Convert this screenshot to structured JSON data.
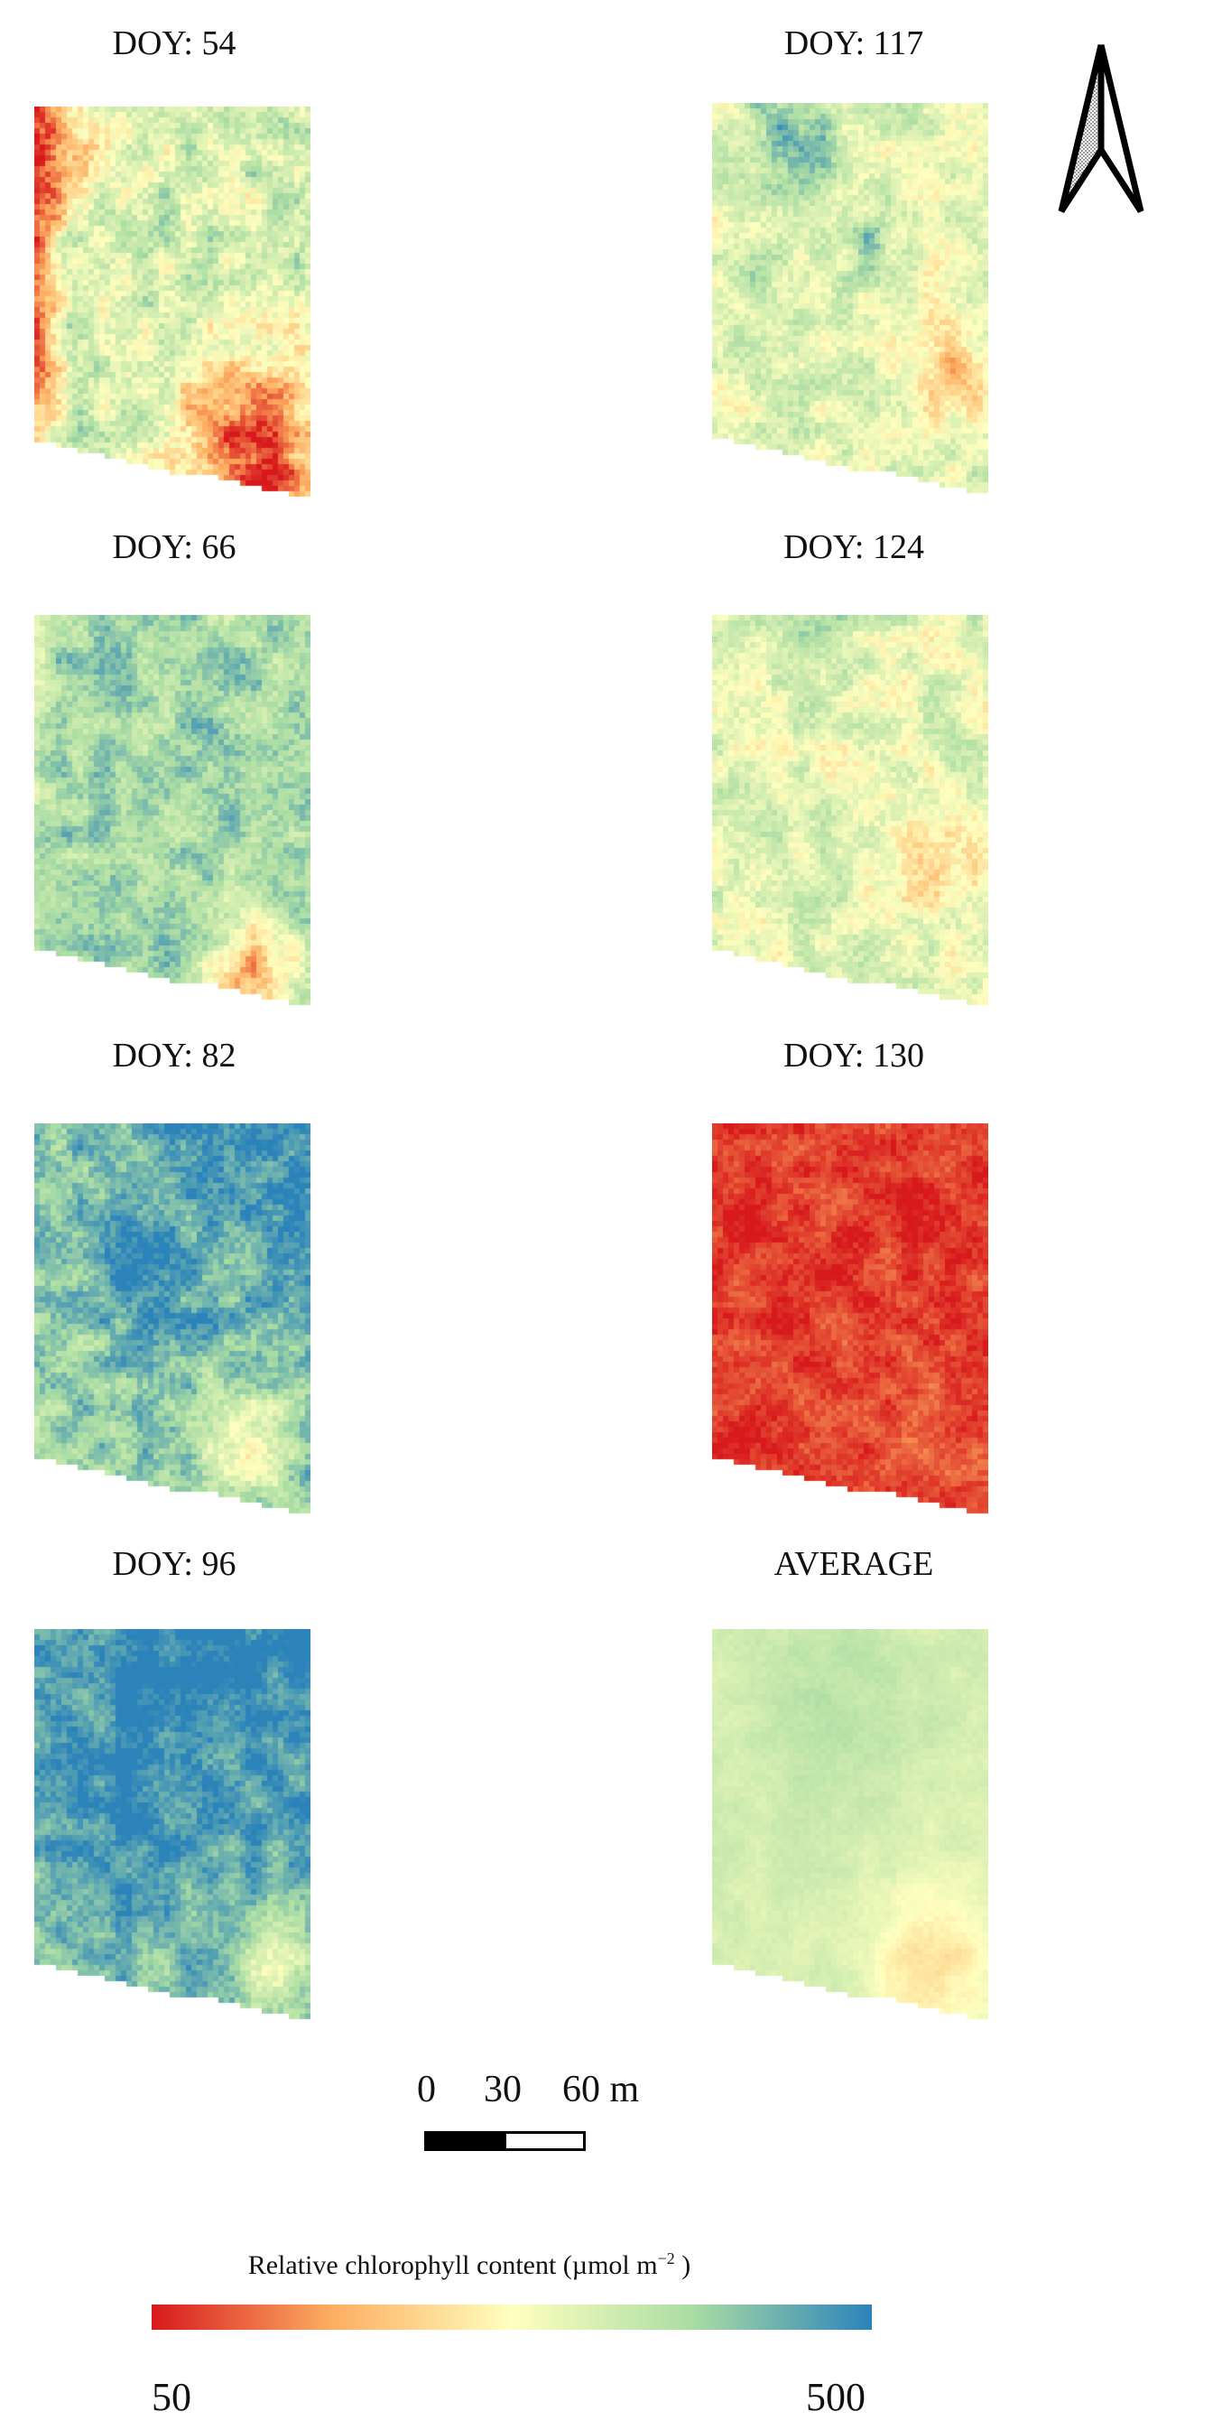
{
  "panels": [
    {
      "id": "doy54",
      "title": "DOY: 54",
      "scheme": "doy54"
    },
    {
      "id": "doy117",
      "title": "DOY: 117",
      "scheme": "doy117"
    },
    {
      "id": "doy66",
      "title": "DOY: 66",
      "scheme": "doy66"
    },
    {
      "id": "doy124",
      "title": "DOY: 124",
      "scheme": "doy124"
    },
    {
      "id": "doy82",
      "title": "DOY: 82",
      "scheme": "doy82"
    },
    {
      "id": "doy130",
      "title": "DOY: 130",
      "scheme": "doy130"
    },
    {
      "id": "doy96",
      "title": "DOY: 96",
      "scheme": "doy96"
    },
    {
      "id": "average",
      "title": "AVERAGE",
      "scheme": "average"
    }
  ],
  "scale_bar": {
    "labels": [
      "0",
      "30",
      "60 m"
    ],
    "colors": [
      "#000000",
      "#ffffff"
    ]
  },
  "legend": {
    "title": "Relative chlorophyll content  (µmol m",
    "title_exponent": "−2",
    "title_suffix": " )",
    "min_label": "50",
    "max_label": "500",
    "min_value": 50,
    "max_value": 500,
    "colors": [
      "#d7191c",
      "#fdae61",
      "#ffffbf",
      "#abdda4",
      "#2b83ba"
    ]
  }
}
